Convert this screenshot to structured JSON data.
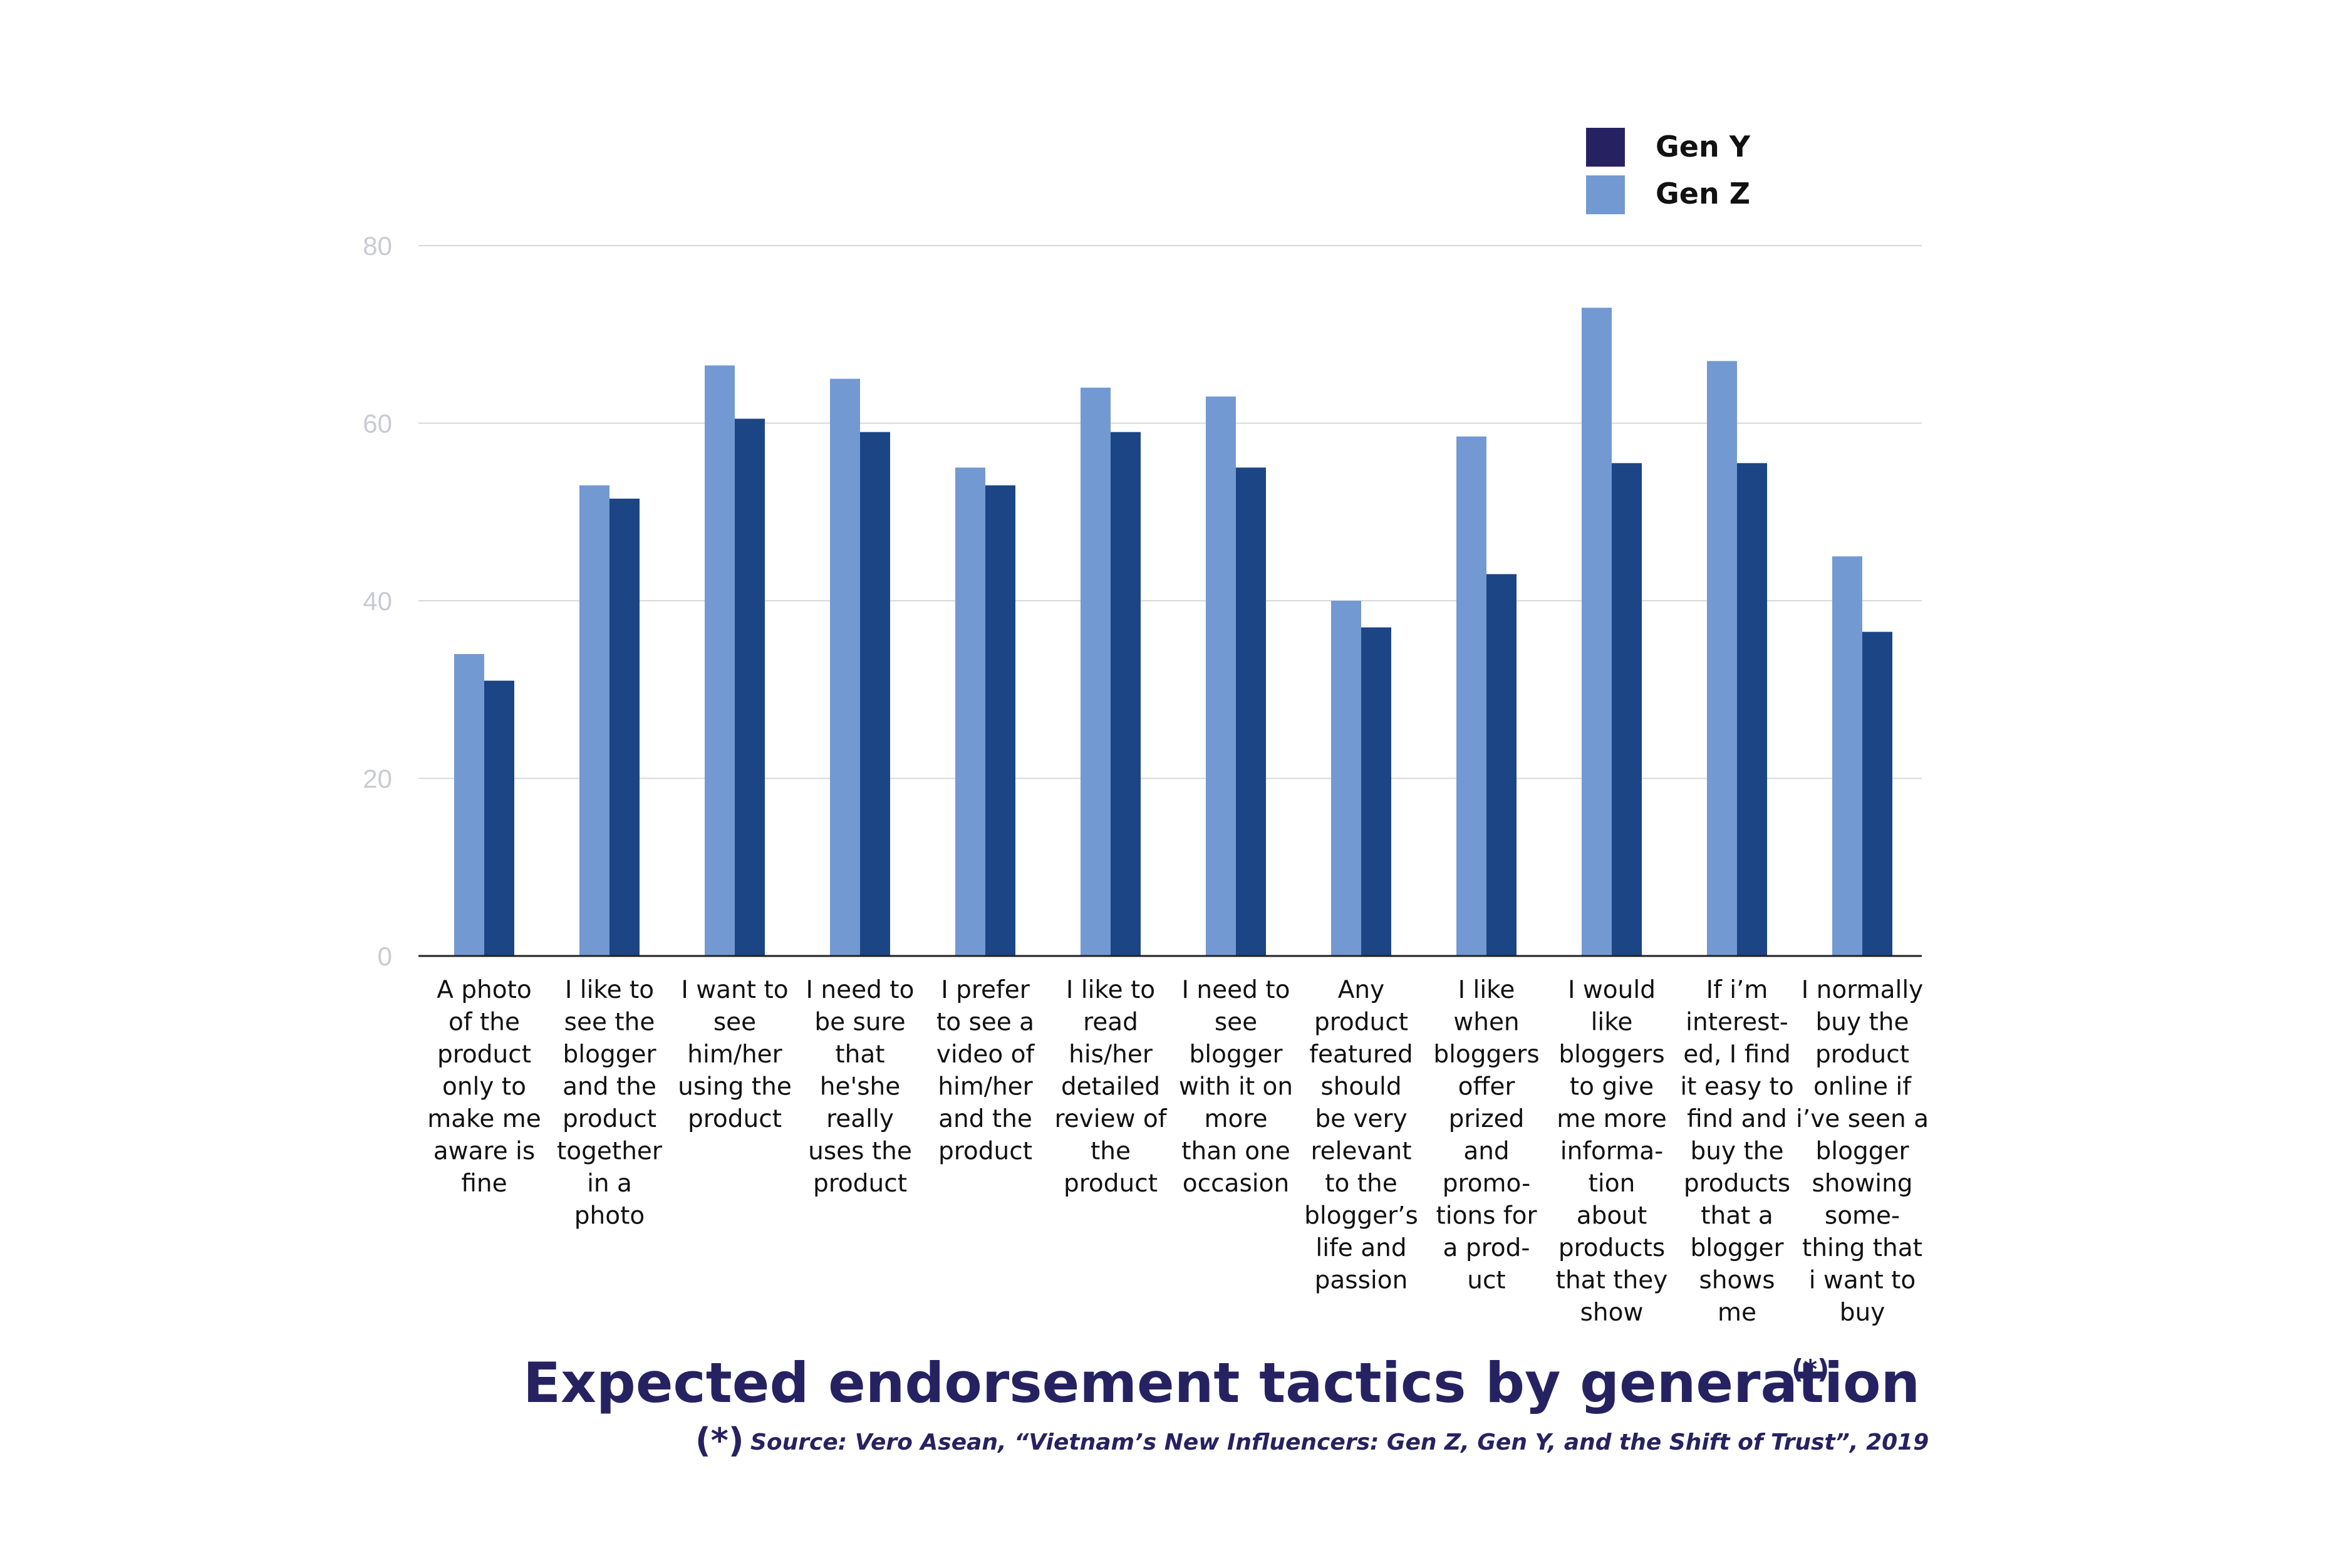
{
  "chart_data": {
    "type": "bar",
    "title": "Expected endorsement tactics by generation",
    "title_note": "(*)",
    "source_mark": "(*)",
    "source": "Source: Vero Asean, “Vietnam’s New Influencers: Gen Z, Gen Y, and the Shift of Trust”, 2019",
    "xlabel": "",
    "ylabel": "",
    "ylim": [
      0,
      80
    ],
    "yticks": [
      "0",
      "20",
      "40",
      "60",
      "80"
    ],
    "grid": true,
    "legend_position": "top-right",
    "legend": [
      {
        "name": "Gen Y",
        "color": "#262262"
      },
      {
        "name": "Gen Z",
        "color": "#7399d2"
      }
    ],
    "categories": [
      [
        "A photo",
        "of the",
        "product",
        "only to",
        "make me",
        "aware is",
        "fine"
      ],
      [
        "I like to",
        "see the",
        "blogger",
        "and the",
        "product",
        "together",
        "in a",
        "photo"
      ],
      [
        "I want to",
        "see",
        "him/her",
        "using the",
        "product"
      ],
      [
        "I need to",
        "be sure",
        "that",
        "he'she",
        "really",
        "uses the",
        "product"
      ],
      [
        "I prefer",
        "to see a",
        "video of",
        "him/her",
        "and the",
        "product"
      ],
      [
        "I like to",
        "read",
        "his/her",
        "detailed",
        "review of",
        "the",
        "product"
      ],
      [
        "I need to",
        "see",
        "blogger",
        "with it on",
        "more",
        "than one",
        "occasion"
      ],
      [
        "Any",
        "product",
        "featured",
        "should",
        "be very",
        "relevant",
        "to the",
        "blogger’s",
        "life and",
        "passion"
      ],
      [
        "I like",
        "when",
        "bloggers",
        "offer",
        "prized",
        "and",
        "promo-",
        "tions for",
        "a prod-",
        "uct"
      ],
      [
        "I would",
        "like",
        "bloggers",
        "to give",
        "me more",
        "informa-",
        "tion",
        "about",
        "products",
        "that they",
        "show"
      ],
      [
        "If i’m",
        "interest-",
        "ed, I find",
        "it easy to",
        "find and",
        "buy the",
        "products",
        "that a",
        "blogger",
        "shows",
        "me"
      ],
      [
        "I normally",
        "buy the",
        "product",
        "online if",
        "i’ve seen a",
        "blogger",
        "showing",
        "some-",
        "thing that",
        "i want to",
        "buy"
      ]
    ],
    "series": [
      {
        "name": "Gen Z",
        "color": "#7399d2",
        "values": [
          34,
          53,
          66.5,
          65,
          55,
          64,
          63,
          40,
          58.5,
          73,
          67,
          45
        ]
      },
      {
        "name": "Gen Y",
        "color": "#1c4585",
        "values": [
          31,
          51.5,
          60.5,
          59,
          53,
          59,
          55,
          37,
          43,
          55.5,
          55.5,
          36.5
        ]
      }
    ]
  }
}
